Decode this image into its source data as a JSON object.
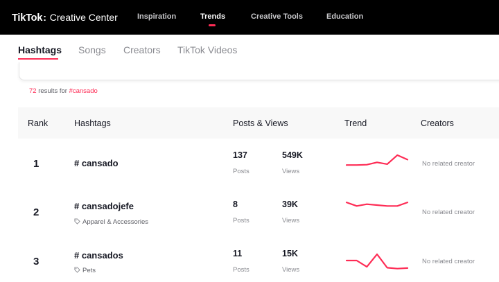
{
  "colors": {
    "accent": "#fe2c55",
    "topbar": "#000000",
    "header_bg": "#f8f8f8"
  },
  "header": {
    "logo_brand": "TikTok",
    "logo_separator": ":",
    "logo_product": "Creative Center",
    "nav": [
      "Inspiration",
      "Trends",
      "Creative Tools",
      "Education"
    ],
    "active_nav": "Trends"
  },
  "tabs": [
    "Hashtags",
    "Songs",
    "Creators",
    "TikTok Videos"
  ],
  "active_tab": "Hashtags",
  "results": {
    "count": "72",
    "text": " results for ",
    "query": "#cansado"
  },
  "table": {
    "columns": {
      "rank": "Rank",
      "hashtags": "Hashtags",
      "posts_views": "Posts & Views",
      "trend": "Trend",
      "creators": "Creators"
    },
    "rows": [
      {
        "rank": "1",
        "hashtag": "# cansado",
        "category": "",
        "posts": "137",
        "posts_label": "Posts",
        "views": "549K",
        "views_label": "Views",
        "creators": "No related creator",
        "trend": [
          0.3,
          0.3,
          0.32,
          0.45,
          0.35,
          0.85,
          0.6
        ]
      },
      {
        "rank": "2",
        "hashtag": "# cansadojefe",
        "category": "Apparel & Accessories",
        "posts": "8",
        "posts_label": "Posts",
        "views": "39K",
        "views_label": "Views",
        "creators": "No related creator",
        "trend": [
          0.65,
          0.45,
          0.55,
          0.5,
          0.45,
          0.45,
          0.65
        ]
      },
      {
        "rank": "3",
        "hashtag": "# cansados",
        "category": "Pets",
        "posts": "11",
        "posts_label": "Posts",
        "views": "15K",
        "views_label": "Views",
        "creators": "No related creator",
        "trend": [
          0.5,
          0.5,
          0.15,
          0.85,
          0.1,
          0.05,
          0.08
        ]
      }
    ]
  }
}
